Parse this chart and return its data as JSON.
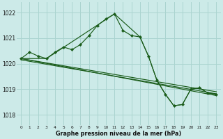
{
  "title": "Graphe pression niveau de la mer (hPa)",
  "bg_color": "#cceae8",
  "grid_color": "#aad4d0",
  "line_color": "#1a5c1a",
  "marker_color": "#1a5c1a",
  "xlim": [
    -0.5,
    23.5
  ],
  "ylim": [
    1017.6,
    1022.4
  ],
  "yticks": [
    1018,
    1019,
    1020,
    1021,
    1022
  ],
  "xtick_labels": [
    "0",
    "1",
    "2",
    "3",
    "4",
    "5",
    "6",
    "7",
    "8",
    "9",
    "10",
    "11",
    "12",
    "13",
    "14",
    "15",
    "16",
    "17",
    "18",
    "19",
    "20",
    "21",
    "22",
    "23"
  ],
  "xtick_positions": [
    0,
    1,
    2,
    3,
    4,
    5,
    6,
    7,
    8,
    9,
    10,
    11,
    12,
    13,
    14,
    15,
    16,
    17,
    18,
    19,
    20,
    21,
    22,
    23
  ],
  "series": [
    {
      "x": [
        0,
        1,
        2,
        3,
        4,
        5,
        6,
        7,
        8,
        9,
        10,
        11,
        12,
        13,
        14,
        15,
        16,
        17,
        18,
        19,
        20,
        21,
        22,
        23
      ],
      "y": [
        1020.2,
        1020.45,
        1020.3,
        1020.2,
        1020.45,
        1020.65,
        1020.55,
        1020.75,
        1021.1,
        1021.5,
        1021.75,
        1021.95,
        1021.3,
        1021.1,
        1021.05,
        1020.3,
        1019.35,
        1018.8,
        1018.35,
        1018.4,
        1019.0,
        1019.05,
        1018.85,
        1018.8
      ],
      "has_markers": true
    },
    {
      "x": [
        0,
        3,
        11,
        14,
        15,
        16,
        17,
        18,
        19,
        20,
        21,
        22,
        23
      ],
      "y": [
        1020.2,
        1020.2,
        1021.95,
        1021.05,
        1020.3,
        1019.35,
        1018.8,
        1018.35,
        1018.4,
        1019.0,
        1019.05,
        1018.85,
        1018.8
      ],
      "has_markers": false
    },
    {
      "x": [
        0,
        23
      ],
      "y": [
        1020.2,
        1018.75
      ],
      "has_markers": false
    },
    {
      "x": [
        0,
        23
      ],
      "y": [
        1020.2,
        1018.9
      ],
      "has_markers": false
    },
    {
      "x": [
        0,
        23
      ],
      "y": [
        1020.15,
        1018.82
      ],
      "has_markers": false
    }
  ]
}
